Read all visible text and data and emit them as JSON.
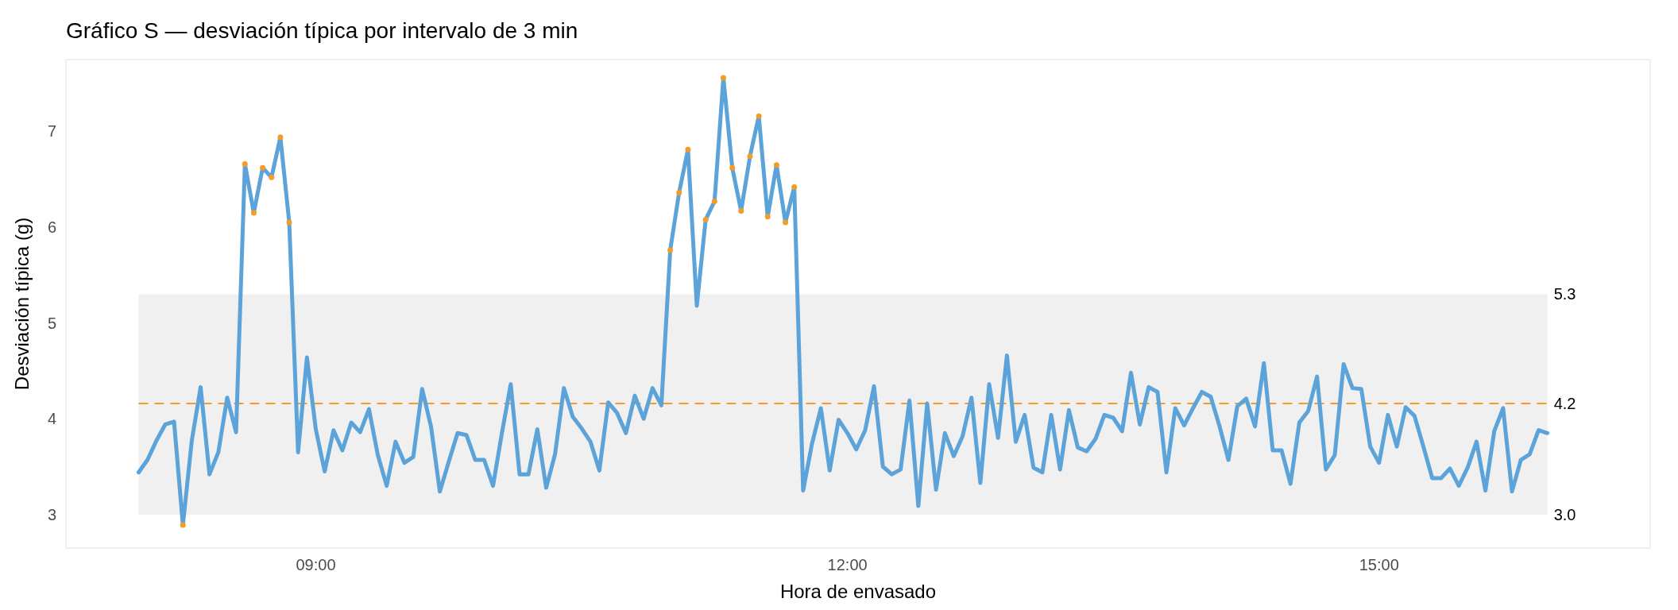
{
  "chart_data": {
    "type": "line",
    "title": "Gráfico S — desviación típica por intervalo de 3 min",
    "xlabel": "Hora de envasado",
    "ylabel": "Desviación típica (g)",
    "xlim": [
      7.59,
      16.53
    ],
    "xticks": [
      {
        "value": 9,
        "label": "09:00"
      },
      {
        "value": 12,
        "label": "12:00"
      },
      {
        "value": 15,
        "label": "15:00"
      }
    ],
    "ylim": [
      2.65,
      7.75
    ],
    "yticks": [
      3,
      4,
      5,
      6,
      7
    ],
    "bands": [
      {
        "axis": "y",
        "from": 3.0,
        "to": 5.3,
        "color": "#f0f0f0"
      }
    ],
    "ref_lines": [
      {
        "axis": "y",
        "value": 4.16,
        "label": "4.2",
        "color": "#f39c28",
        "line_style": "dashed"
      }
    ],
    "annotations": [
      {
        "text": "5.3",
        "x": 15.95,
        "y": 5.3
      },
      {
        "text": "3.0",
        "x": 15.95,
        "y": 3.0
      }
    ],
    "series": [
      {
        "color": "#5ba3d9",
        "x": [
          8,
          8.05,
          8.1,
          8.15,
          8.2,
          8.25,
          8.3,
          8.35,
          8.4,
          8.45,
          8.5,
          8.55,
          8.6,
          8.65,
          8.7,
          8.75,
          8.8,
          8.85,
          8.9,
          8.95,
          9,
          9.05,
          9.1,
          9.15,
          9.2,
          9.25,
          9.3,
          9.35,
          9.4,
          9.45,
          9.5,
          9.55,
          9.6,
          9.65,
          9.7,
          9.75,
          9.8,
          9.85,
          9.9,
          9.95,
          10,
          10.05,
          10.1,
          10.15,
          10.2,
          10.25,
          10.3,
          10.35,
          10.4,
          10.45,
          10.5,
          10.55,
          10.6,
          10.65,
          10.7,
          10.75,
          10.8,
          10.85,
          10.9,
          10.95,
          11,
          11.05,
          11.1,
          11.15,
          11.2,
          11.25,
          11.3,
          11.35,
          11.4,
          11.45,
          11.5,
          11.55,
          11.6,
          11.65,
          11.7,
          11.75,
          11.8,
          11.85,
          11.9,
          11.95,
          12,
          12.05,
          12.1,
          12.15,
          12.2,
          12.25,
          12.3,
          12.35,
          12.4,
          12.45,
          12.5,
          12.55,
          12.6,
          12.65,
          12.7,
          12.75,
          12.8,
          12.85,
          12.9,
          12.95,
          13,
          13.05,
          13.1,
          13.15,
          13.2,
          13.25,
          13.3,
          13.35,
          13.4,
          13.45,
          13.5,
          13.55,
          13.6,
          13.65,
          13.7,
          13.75,
          13.8,
          13.85,
          13.9,
          13.95,
          14,
          14.05,
          14.1,
          14.15,
          14.2,
          14.25,
          14.3,
          14.35,
          14.4,
          14.45,
          14.5,
          14.55,
          14.6,
          14.65,
          14.7,
          14.75,
          14.8,
          14.85,
          14.9,
          14.95,
          15,
          15.05,
          15.1,
          15.15,
          15.2,
          15.25,
          15.3,
          15.35,
          15.4,
          15.45,
          15.5,
          15.55,
          15.6,
          15.65,
          15.7,
          15.75,
          15.8,
          15.85,
          15.9,
          15.95
        ],
        "values": [
          3.44,
          3.57,
          3.77,
          3.94,
          3.97,
          2.89,
          3.77,
          4.33,
          3.42,
          3.65,
          4.22,
          3.86,
          6.66,
          6.15,
          6.62,
          6.52,
          6.94,
          6.05,
          3.65,
          4.64,
          3.89,
          3.45,
          3.88,
          3.67,
          3.96,
          3.86,
          4.1,
          3.62,
          3.3,
          3.76,
          3.54,
          3.6,
          4.31,
          3.92,
          3.24,
          3.55,
          3.85,
          3.83,
          3.57,
          3.57,
          3.3,
          3.85,
          4.36,
          3.42,
          3.42,
          3.89,
          3.28,
          3.63,
          4.32,
          4.02,
          3.9,
          3.76,
          3.46,
          4.17,
          4.06,
          3.85,
          4.24,
          4.0,
          4.32,
          4.14,
          5.76,
          6.36,
          6.81,
          5.18,
          6.08,
          6.27,
          7.56,
          6.62,
          6.17,
          6.74,
          7.16,
          6.11,
          6.65,
          6.05,
          6.42,
          3.25,
          3.74,
          4.11,
          3.46,
          3.99,
          3.85,
          3.68,
          3.88,
          4.34,
          3.5,
          3.42,
          3.47,
          4.19,
          3.09,
          4.16,
          3.26,
          3.85,
          3.61,
          3.82,
          4.22,
          3.33,
          4.36,
          3.8,
          4.66,
          3.76,
          4.04,
          3.49,
          3.44,
          4.04,
          3.47,
          4.09,
          3.7,
          3.66,
          3.79,
          4.04,
          4.01,
          3.87,
          4.48,
          3.94,
          4.33,
          4.28,
          3.44,
          4.11,
          3.93,
          4.11,
          4.28,
          4.23,
          3.92,
          3.57,
          4.13,
          4.21,
          3.92,
          4.58,
          3.67,
          3.67,
          3.32,
          3.96,
          4.08,
          4.44,
          3.47,
          3.62,
          4.57,
          4.32,
          4.31,
          3.71,
          3.54,
          4.04,
          3.71,
          4.12,
          4.03,
          3.71,
          3.38,
          3.38,
          3.48,
          3.3,
          3.49,
          3.76,
          3.25,
          3.87,
          4.11,
          3.24,
          3.57,
          3.63,
          3.88,
          3.85
        ]
      },
      {
        "type": "scatter",
        "color": "#f39c28",
        "x": [
          8.25,
          8.6,
          8.65,
          8.7,
          8.75,
          8.8,
          8.85,
          11,
          11.05,
          11.1,
          11.2,
          11.25,
          11.3,
          11.35,
          11.4,
          11.45,
          11.5,
          11.55,
          11.6,
          11.65,
          11.7
        ],
        "values": [
          2.89,
          6.66,
          6.15,
          6.62,
          6.52,
          6.94,
          6.05,
          5.76,
          6.36,
          6.81,
          6.08,
          6.27,
          7.56,
          6.62,
          6.17,
          6.74,
          7.16,
          6.11,
          6.65,
          6.05,
          6.42
        ]
      }
    ]
  }
}
